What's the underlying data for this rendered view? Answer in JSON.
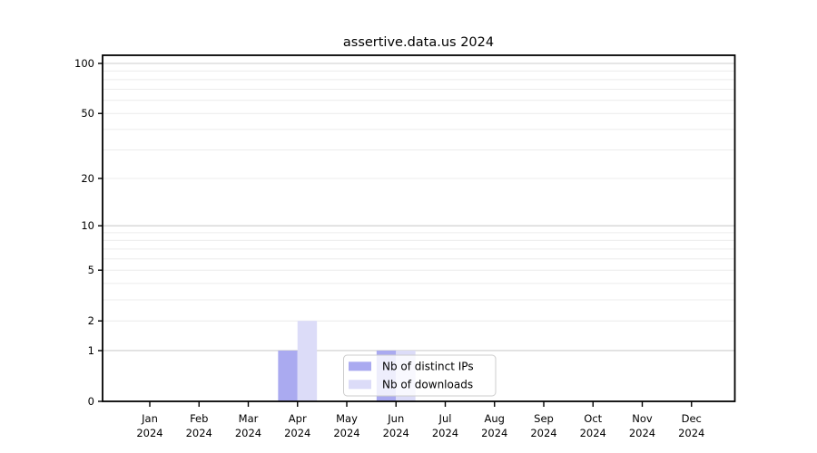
{
  "chart_data": {
    "type": "bar",
    "title": "assertive.data.us 2024",
    "categories": [
      "Jan",
      "Feb",
      "Mar",
      "Apr",
      "May",
      "Jun",
      "Jul",
      "Aug",
      "Sep",
      "Oct",
      "Nov",
      "Dec"
    ],
    "category_sublabel": "2024",
    "series": [
      {
        "name": "Nb of distinct IPs",
        "color": "#aaaaf0",
        "values": [
          0,
          0,
          0,
          1,
          0,
          1,
          0,
          0,
          0,
          0,
          0,
          0
        ]
      },
      {
        "name": "Nb of downloads",
        "color": "#dcdcf8",
        "values": [
          0,
          0,
          0,
          2,
          0,
          1,
          0,
          0,
          0,
          0,
          0,
          0
        ]
      }
    ],
    "yscale": "log1p",
    "ylim": [
      0,
      112
    ],
    "yticks": [
      0,
      1,
      2,
      5,
      10,
      20,
      50,
      100
    ],
    "grid": {
      "major": [
        1,
        10,
        100
      ],
      "minor": [
        2,
        3,
        4,
        5,
        6,
        7,
        8,
        9,
        20,
        30,
        40,
        50,
        60,
        70,
        80,
        90
      ],
      "major_color": "#cccccc",
      "minor_color": "#ececec"
    },
    "legend": {
      "position": "inside-bottom-center",
      "background": "rgba(255,255,255,0.8)",
      "border_color": "#cccccc",
      "entries": [
        "Nb of distinct IPs",
        "Nb of downloads"
      ]
    },
    "spine_color": "#000000",
    "background_color": "#ffffff"
  }
}
